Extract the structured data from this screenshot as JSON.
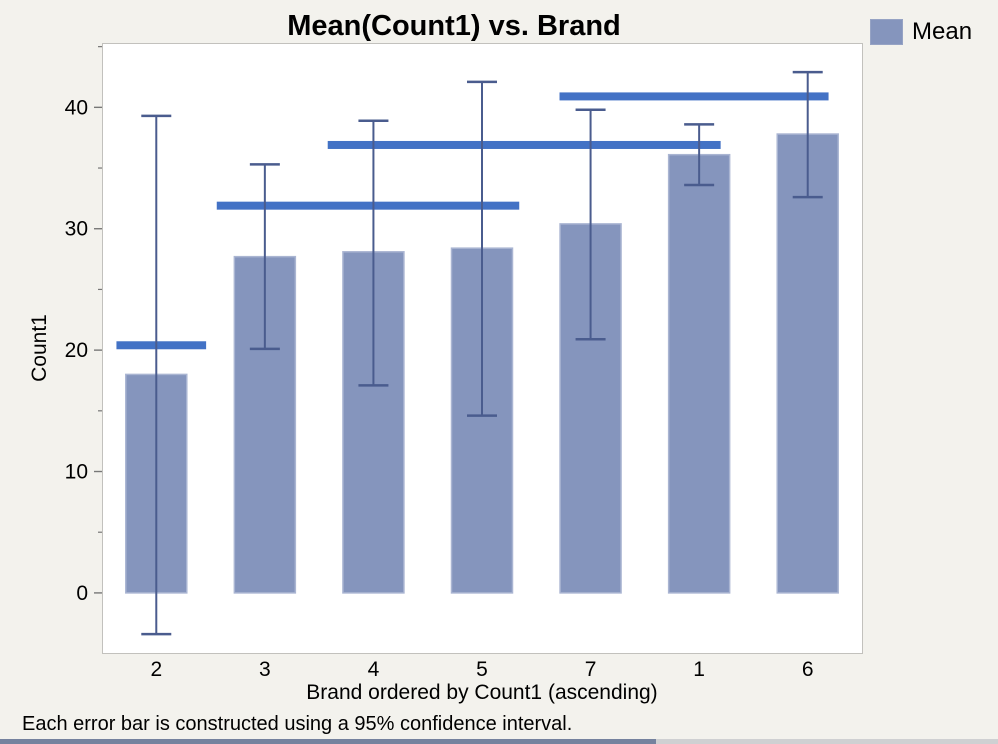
{
  "window": {
    "background": "#f3f2ed",
    "bottom_strip_left_color": "#75829e",
    "bottom_strip_right_color": "#cfd0d2"
  },
  "chart": {
    "title": "Mean(Count1) vs. Brand",
    "ylabel": "Count1",
    "xlabel": "Brand ordered by Count1 (ascending)",
    "caption": "Each error bar is constructed using a 95% confidence interval.",
    "legend": [
      {
        "label": "Mean",
        "swatch_color": "#8595bd"
      }
    ]
  },
  "chart_data": {
    "type": "bar",
    "categories": [
      "2",
      "3",
      "4",
      "5",
      "7",
      "1",
      "6"
    ],
    "values": [
      18,
      27.7,
      28.1,
      28.4,
      30.4,
      36.1,
      37.8
    ],
    "error_low": [
      -3.4,
      20.1,
      17.1,
      14.6,
      20.9,
      33.6,
      32.6
    ],
    "error_high": [
      39.3,
      35.3,
      38.9,
      42.1,
      39.8,
      38.6,
      42.9
    ],
    "error_bar_type": "95% confidence interval",
    "mean_lines": [
      {
        "value": 20.4,
        "span_frac": [
          0.019,
          0.137
        ],
        "categories_spanned": [
          "2"
        ]
      },
      {
        "value": 31.9,
        "span_frac": [
          0.151,
          0.549
        ],
        "categories_spanned": [
          "3",
          "4",
          "5"
        ]
      },
      {
        "value": 36.9,
        "span_frac": [
          0.297,
          0.814
        ],
        "categories_spanned": [
          "4",
          "5",
          "7",
          "1"
        ]
      },
      {
        "value": 40.9,
        "span_frac": [
          0.602,
          0.956
        ],
        "categories_spanned": [
          "7",
          "1",
          "6"
        ]
      }
    ],
    "title": "Mean(Count1) vs. Brand",
    "xlabel": "Brand ordered by Count1 (ascending)",
    "ylabel": "Count1",
    "ylim": [
      -4.95,
      45.3
    ],
    "y_major_ticks": [
      0,
      10,
      20,
      30,
      40
    ],
    "y_minor_ticks": [
      5,
      15,
      25,
      35,
      45
    ],
    "grid": false,
    "legend_position": "top-right",
    "colors": {
      "bar_fill": "#8595bd",
      "bar_edge": "#aab5d2",
      "error_bar": "#4a5c8e",
      "mean_line": "#4372c5",
      "plot_background": "#ffffff",
      "frame": "#c2c1bd",
      "tick": "#777777",
      "text": "#000000"
    }
  }
}
